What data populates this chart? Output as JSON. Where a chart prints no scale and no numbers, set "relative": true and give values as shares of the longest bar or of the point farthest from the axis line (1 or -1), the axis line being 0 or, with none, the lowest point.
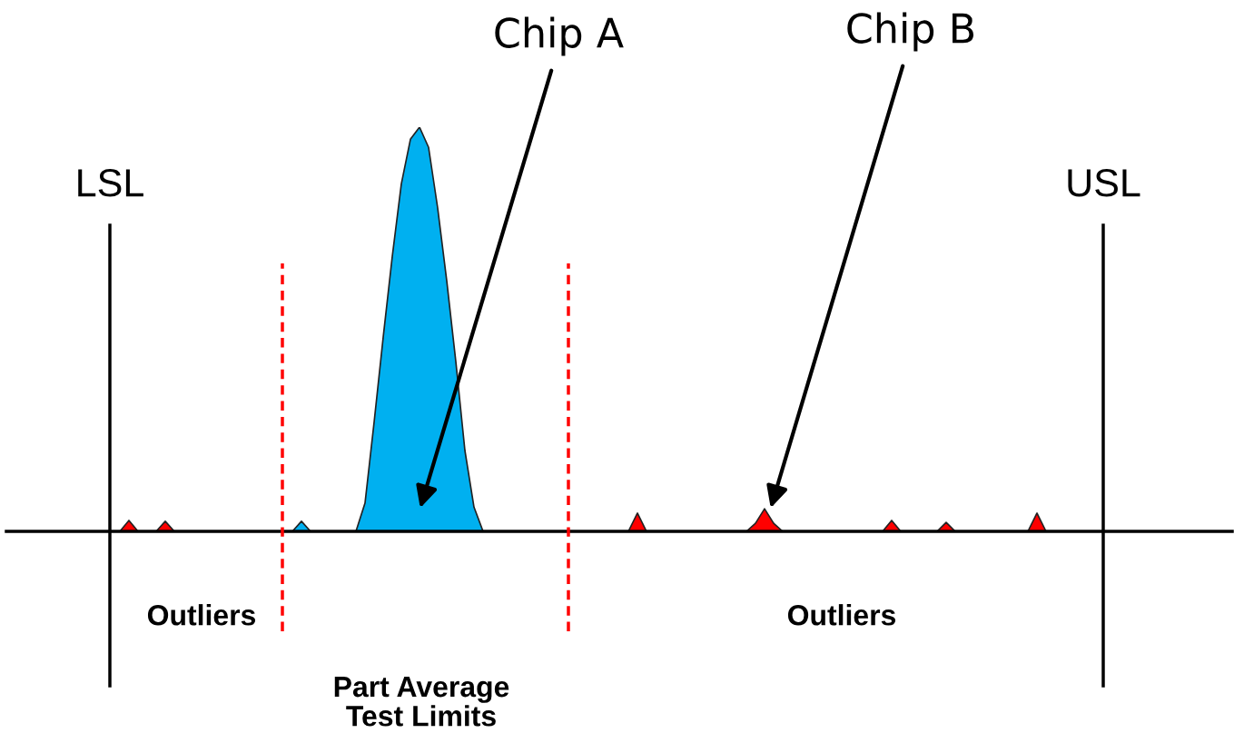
{
  "chart_data": {
    "type": "area",
    "relative": true,
    "categories": [
      null,
      null,
      null,
      null,
      null,
      null,
      null,
      null,
      null,
      null,
      null,
      null,
      null,
      null,
      null,
      null,
      null,
      null,
      null,
      null,
      null,
      null,
      null,
      null,
      null,
      null,
      null,
      null,
      null,
      null,
      null,
      null,
      null,
      null,
      null,
      null,
      null,
      null,
      null,
      null,
      null,
      null,
      null,
      null,
      null,
      null,
      null,
      null,
      null,
      null,
      null,
      null,
      null,
      null,
      null,
      null,
      null,
      null,
      null,
      null,
      null,
      null,
      null,
      null,
      null,
      null,
      null,
      null,
      null,
      null,
      null,
      null,
      null,
      null,
      null,
      null,
      null,
      null,
      null,
      null,
      null,
      null,
      null,
      null,
      null,
      null,
      null,
      null,
      null,
      null,
      null,
      null,
      null,
      null,
      null,
      null,
      null,
      null,
      null,
      null,
      null,
      null,
      null,
      null,
      null,
      null,
      null,
      null,
      null,
      null,
      null,
      null,
      null,
      null,
      null,
      null,
      null,
      null,
      null,
      null,
      null,
      null,
      null,
      null,
      null,
      null,
      null,
      null,
      null,
      null,
      null,
      null,
      null,
      null,
      null
    ],
    "series": [
      {
        "color": "#00b0f0",
        "values": [
          0,
          0,
          0,
          0,
          0,
          0,
          0,
          0,
          0,
          0,
          0,
          0,
          0,
          0,
          0,
          0,
          0,
          0,
          0,
          0,
          0,
          0,
          0,
          0,
          0,
          0,
          0,
          0,
          0,
          0,
          0,
          0,
          0.025,
          0,
          0,
          0,
          0,
          0,
          0,
          0.07,
          0.27,
          0.48,
          0.68,
          0.86,
          0.97,
          1,
          0.95,
          0.8,
          0.62,
          0.42,
          0.2,
          0.06,
          0,
          0,
          0,
          0,
          0,
          0,
          0,
          0,
          0,
          0,
          0,
          0,
          0,
          0,
          0,
          0,
          0,
          0,
          0,
          0,
          0,
          0,
          0,
          0,
          0,
          0,
          0,
          0,
          0,
          0,
          0,
          0,
          0,
          0,
          0,
          0,
          0,
          0,
          0,
          0,
          0,
          0,
          0,
          0,
          0,
          0,
          0,
          0,
          0,
          0,
          0,
          0,
          0,
          0,
          0,
          0,
          0,
          0,
          0,
          0,
          0,
          0,
          0,
          0,
          0,
          0,
          0,
          0,
          0,
          0,
          0,
          0,
          0,
          0,
          0,
          0,
          0,
          0,
          0,
          0,
          0,
          0,
          0
        ]
      },
      {
        "color": "#ff0000",
        "values": [
          0,
          0,
          0,
          0,
          0,
          0,
          0,
          0,
          0,
          0,
          0,
          0,
          0,
          0.027,
          0,
          0,
          0,
          0.025,
          0,
          0,
          0,
          0,
          0,
          0,
          0,
          0,
          0,
          0,
          0,
          0,
          0,
          0,
          0,
          0,
          0,
          0,
          0,
          0,
          0,
          0,
          0,
          0,
          0,
          0,
          0,
          0,
          0,
          0,
          0,
          0,
          0,
          0,
          0,
          0,
          0,
          0,
          0,
          0,
          0,
          0,
          0,
          0,
          0,
          0,
          0,
          0,
          0,
          0,
          0,
          0.045,
          0,
          0,
          0,
          0,
          0,
          0,
          0,
          0,
          0,
          0,
          0,
          0,
          0.02,
          0.056,
          0.02,
          0,
          0,
          0,
          0,
          0,
          0,
          0,
          0,
          0,
          0,
          0,
          0,
          0.027,
          0,
          0,
          0,
          0,
          0,
          0.022,
          0,
          0,
          0,
          0,
          0,
          0,
          0,
          0,
          0,
          0.045,
          0,
          0,
          0,
          0,
          0,
          0,
          0,
          0,
          0,
          0,
          0,
          0,
          0,
          0,
          0,
          0,
          0,
          0,
          0,
          0,
          0
        ]
      }
    ],
    "annotations": [
      "LSL",
      "USL",
      "Chip A",
      "Chip B",
      "Outliers",
      "Outliers",
      "Part Average\nTest Limits"
    ]
  }
}
